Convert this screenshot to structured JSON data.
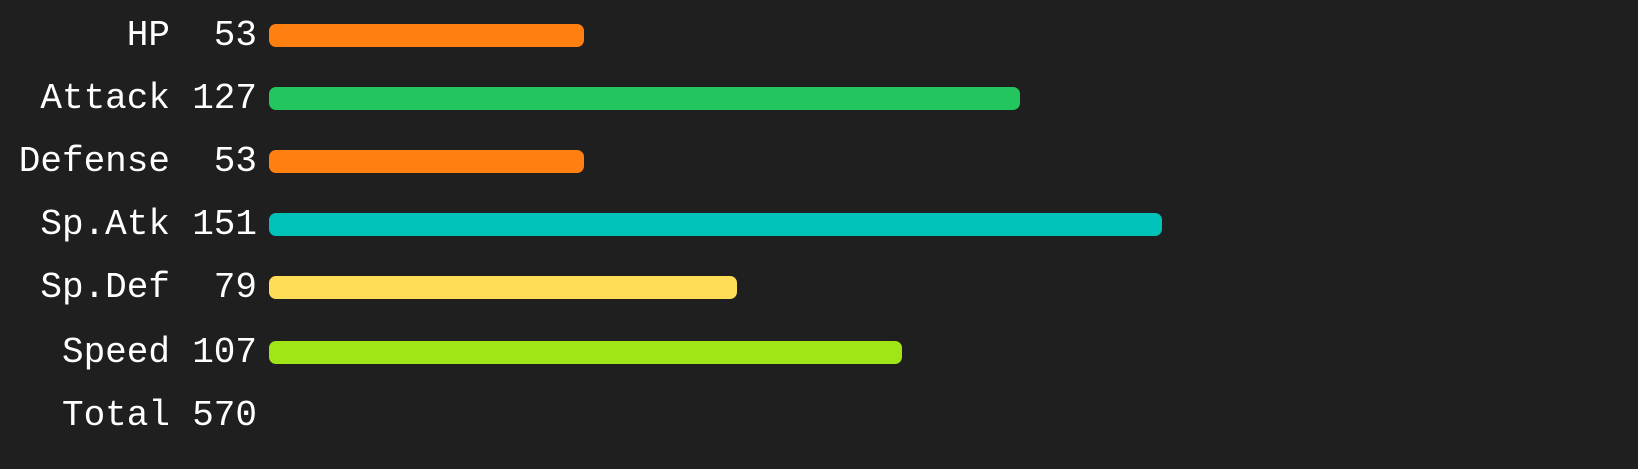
{
  "chart_data": {
    "type": "bar",
    "orientation": "horizontal",
    "categories": [
      "HP",
      "Attack",
      "Defense",
      "Sp.Atk",
      "Sp.Def",
      "Speed"
    ],
    "values": [
      53,
      127,
      53,
      151,
      79,
      107
    ],
    "colors": [
      "#ff7f11",
      "#22c55e",
      "#ff7f11",
      "#00c2b8",
      "#ffdd57",
      "#a0e515"
    ],
    "total_label": "Total",
    "total_value": 570,
    "grid": false,
    "legend": "none"
  }
}
